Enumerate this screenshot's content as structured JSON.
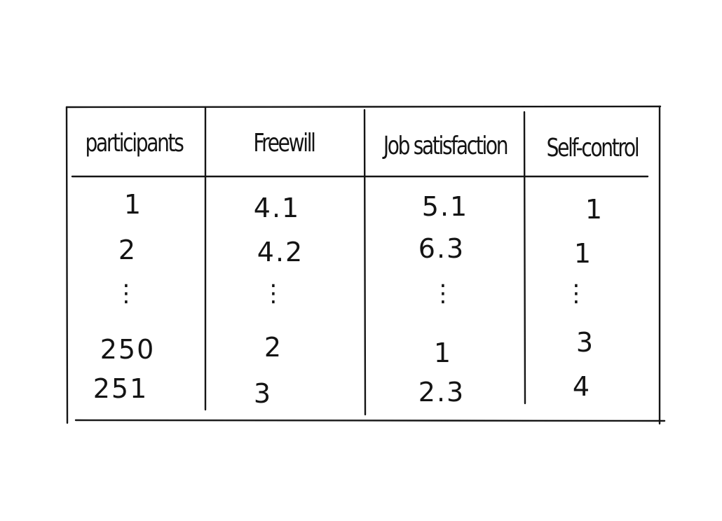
{
  "table": {
    "headers": [
      "participants",
      "Freewill",
      "Job satisfaction",
      "Self-control"
    ],
    "rows": [
      [
        "1",
        "4.1",
        "5.1",
        "1"
      ],
      [
        "2",
        "4.2",
        "6.3",
        "1"
      ],
      [
        "⋮",
        "⋮",
        "⋮",
        "⋮"
      ],
      [
        "250",
        "2",
        "1",
        "3"
      ],
      [
        "251",
        "3",
        "2.3",
        "4"
      ]
    ]
  }
}
